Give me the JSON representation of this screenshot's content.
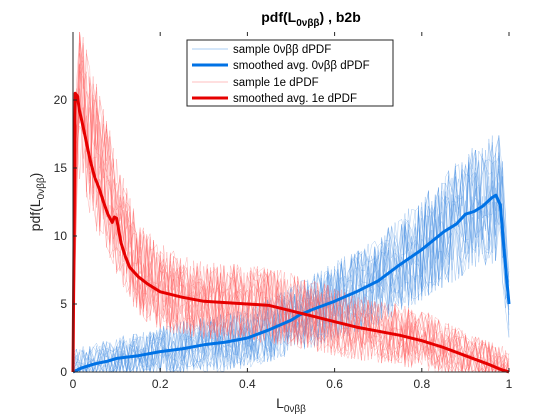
{
  "chart_data": {
    "type": "line",
    "title_main": "pdf(L",
    "title_sub": "0νββ",
    "title_tail": ")  ,  b2b",
    "xlabel_main": "L",
    "xlabel_sub": "0νββ",
    "ylabel_main": "pdf(L",
    "ylabel_sub": "0νββ",
    "ylabel_tail": ")",
    "xlim": [
      0,
      1
    ],
    "ylim": [
      0,
      25
    ],
    "xticks": [
      0,
      0.2,
      0.4,
      0.6,
      0.8,
      1
    ],
    "xtick_labels": [
      "0",
      "0.2",
      "0.4",
      "0.6",
      "0.8",
      "1"
    ],
    "yticks": [
      0,
      5,
      10,
      15,
      20
    ],
    "ytick_labels": [
      "0",
      "5",
      "10",
      "15",
      "20"
    ],
    "grid": false,
    "legend_position": "top-center",
    "series": [
      {
        "name": "sample 0νββ dPDF",
        "style": "thin-faint-band",
        "color": "#4a90e2",
        "approx_count": 20,
        "x": [
          0.0,
          0.05,
          0.1,
          0.15,
          0.2,
          0.25,
          0.3,
          0.35,
          0.4,
          0.45,
          0.5,
          0.55,
          0.6,
          0.65,
          0.7,
          0.75,
          0.8,
          0.85,
          0.9,
          0.95,
          0.98,
          1.0
        ],
        "values": [
          0.1,
          0.4,
          0.8,
          1.1,
          1.4,
          1.7,
          2.0,
          2.2,
          2.5,
          3.1,
          3.8,
          4.5,
          5.2,
          5.9,
          6.7,
          7.9,
          9.1,
          10.3,
          11.6,
          12.6,
          13.0,
          5.0
        ]
      },
      {
        "name": "smoothed avg. 0νββ dPDF",
        "style": "thick",
        "color": "#0072e5",
        "x": [
          0.0,
          0.02,
          0.05,
          0.08,
          0.1,
          0.15,
          0.2,
          0.25,
          0.3,
          0.35,
          0.4,
          0.45,
          0.5,
          0.52,
          0.55,
          0.6,
          0.65,
          0.7,
          0.75,
          0.8,
          0.85,
          0.88,
          0.9,
          0.92,
          0.94,
          0.96,
          0.97,
          0.98,
          0.99,
          1.0
        ],
        "values": [
          0.0,
          0.3,
          0.6,
          0.8,
          1.0,
          1.2,
          1.5,
          1.7,
          2.0,
          2.2,
          2.5,
          3.1,
          3.8,
          4.2,
          4.6,
          5.2,
          5.9,
          6.7,
          7.9,
          9.0,
          10.3,
          10.9,
          11.6,
          11.8,
          12.2,
          12.8,
          13.0,
          12.3,
          8.5,
          5.0
        ]
      },
      {
        "name": "sample 1e dPDF",
        "style": "thin-faint-band",
        "color": "#ff6060",
        "approx_count": 20,
        "x": [
          0.0,
          0.01,
          0.02,
          0.05,
          0.08,
          0.1,
          0.15,
          0.2,
          0.25,
          0.3,
          0.35,
          0.4,
          0.45,
          0.5,
          0.55,
          0.6,
          0.65,
          0.7,
          0.75,
          0.8,
          0.85,
          0.9,
          0.95,
          0.98,
          1.0
        ],
        "values": [
          0.0,
          20.5,
          19.5,
          16.0,
          13.5,
          11.3,
          7.5,
          6.3,
          5.6,
          5.2,
          5.1,
          5.0,
          4.9,
          4.6,
          4.2,
          3.7,
          3.3,
          3.0,
          2.7,
          2.4,
          1.8,
          1.1,
          0.6,
          0.4,
          0.0
        ]
      },
      {
        "name": "smoothed avg. 1e dPDF",
        "style": "thick",
        "color": "#e60000",
        "x": [
          0.0,
          0.005,
          0.01,
          0.015,
          0.02,
          0.03,
          0.04,
          0.05,
          0.06,
          0.07,
          0.08,
          0.09,
          0.095,
          0.1,
          0.105,
          0.11,
          0.12,
          0.13,
          0.15,
          0.17,
          0.2,
          0.25,
          0.3,
          0.35,
          0.4,
          0.45,
          0.5,
          0.55,
          0.6,
          0.65,
          0.7,
          0.75,
          0.8,
          0.85,
          0.9,
          0.95,
          0.98,
          1.0
        ],
        "values": [
          0.0,
          20.5,
          20.3,
          19.2,
          18.5,
          17.0,
          15.5,
          14.3,
          13.5,
          12.5,
          11.6,
          11.0,
          11.4,
          11.3,
          10.4,
          9.5,
          8.5,
          7.7,
          7.0,
          6.5,
          5.9,
          5.5,
          5.2,
          5.1,
          5.0,
          4.9,
          4.5,
          4.1,
          3.7,
          3.3,
          3.0,
          2.7,
          2.3,
          1.8,
          1.2,
          0.6,
          0.2,
          0.0
        ]
      }
    ]
  }
}
